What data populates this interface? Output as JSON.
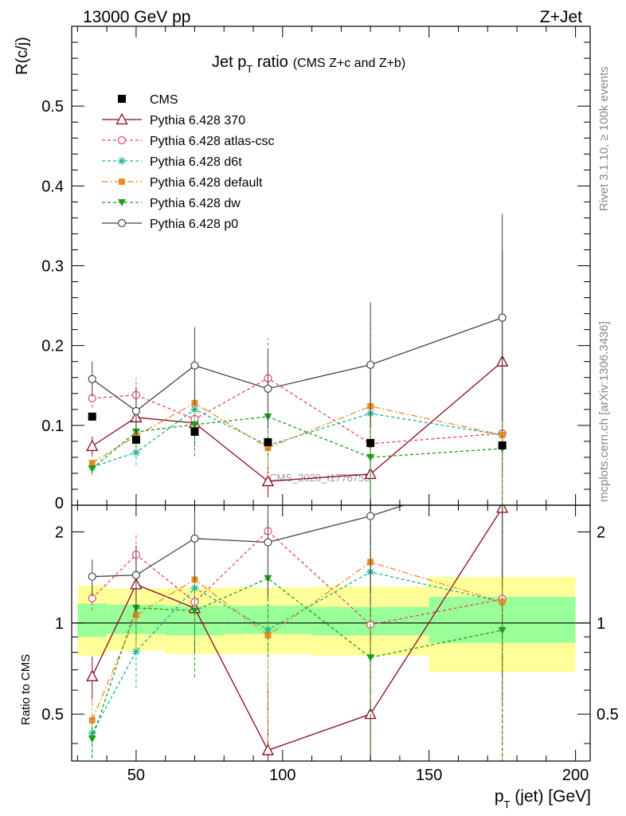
{
  "header": {
    "left": "13000 GeV pp",
    "right": "Z+Jet"
  },
  "side_labels": {
    "rivet": "Rivet 3.1.10, ≥ 100k events",
    "mcplots": "mcplots.cern.ch [arXiv:1306.3436]"
  },
  "watermark": "CMS_2020_I1776758",
  "chart_data": {
    "type": "line",
    "title_main": "Jet p",
    "title_sub": "T",
    "title_rest": " ratio",
    "title_note": "(CMS  Z+c and Z+b)",
    "xlabel_main": "p",
    "xlabel_sub": "T",
    "xlabel_rest": " (jet) [GeV]",
    "ylabel": "R(c/j)",
    "ratio_ylabel": "Ratio to CMS",
    "xlim": [
      28,
      205
    ],
    "ylim": [
      0,
      0.6
    ],
    "ratio_ylim": [
      0.35,
      2.45
    ],
    "ratio_log": true,
    "x_ticks": [
      "50",
      "100",
      "150",
      "200"
    ],
    "y_ticks": [
      "0.1",
      "0.2",
      "0.3",
      "0.4",
      "0.5"
    ],
    "y_zero_label": "0",
    "ratio_ticks": [
      "0.5",
      "1",
      "2"
    ],
    "legend_position": "top-left",
    "x": [
      35,
      50,
      70,
      95,
      130,
      175
    ],
    "x_edges": [
      30,
      40,
      60,
      80,
      110,
      150,
      200
    ],
    "data": {
      "name": "CMS",
      "values": [
        0.111,
        0.082,
        0.092,
        0.079,
        0.078,
        0.075
      ]
    },
    "band_green": [
      [
        0.9,
        1.16
      ],
      [
        0.92,
        1.15
      ],
      [
        0.91,
        1.14
      ],
      [
        0.92,
        1.14
      ],
      [
        0.91,
        1.13
      ],
      [
        0.86,
        1.22
      ]
    ],
    "band_yellow": [
      [
        0.78,
        1.33
      ],
      [
        0.81,
        1.3
      ],
      [
        0.79,
        1.31
      ],
      [
        0.79,
        1.31
      ],
      [
        0.78,
        1.32
      ],
      [
        0.69,
        1.42
      ]
    ],
    "series": [
      {
        "name": "Pythia 6.428 370",
        "color": "#8b0a1f",
        "dash": "",
        "marker": "triangle-open",
        "values": [
          0.074,
          0.11,
          0.103,
          0.03,
          0.039,
          0.18
        ],
        "err": [
          0.012,
          0.03,
          0.03,
          0.02,
          0.08,
          0.14
        ]
      },
      {
        "name": "Pythia 6.428 atlas-csc",
        "color": "#ea4763",
        "dash": "4,3",
        "marker": "circle-open",
        "values": [
          0.134,
          0.138,
          0.108,
          0.159,
          0.077,
          0.09
        ],
        "err": [
          0.012,
          0.022,
          0.035,
          0.05,
          0.11,
          0.13
        ]
      },
      {
        "name": "Pythia 6.428 d6t",
        "color": "#19b29a",
        "dash": "4,3",
        "marker": "star",
        "values": [
          0.048,
          0.066,
          0.12,
          0.075,
          0.115,
          0.088
        ],
        "err": [
          0.008,
          0.016,
          0.04,
          0.04,
          0.12,
          0.11
        ]
      },
      {
        "name": "Pythia 6.428 default",
        "color": "#f08c2c",
        "dash": "8,3,2,3",
        "marker": "square",
        "values": [
          0.053,
          0.087,
          0.128,
          0.072,
          0.124,
          0.088
        ],
        "err": [
          0.009,
          0.02,
          0.035,
          0.04,
          0.08,
          0.12
        ]
      },
      {
        "name": "Pythia 6.428 dw",
        "color": "#1a9e1a",
        "dash": "4,3",
        "marker": "triangle-down",
        "values": [
          0.046,
          0.092,
          0.101,
          0.111,
          0.06,
          0.071
        ],
        "err": [
          0.008,
          0.02,
          0.04,
          0.05,
          0.11,
          0.12
        ]
      },
      {
        "name": "Pythia 6.428 p0",
        "color": "#444444",
        "dash": "",
        "marker": "circle-open",
        "values": [
          0.158,
          0.118,
          0.175,
          0.146,
          0.176,
          0.235
        ],
        "err": [
          0.022,
          0.03,
          0.048,
          0.05,
          0.078,
          0.13
        ]
      }
    ]
  }
}
